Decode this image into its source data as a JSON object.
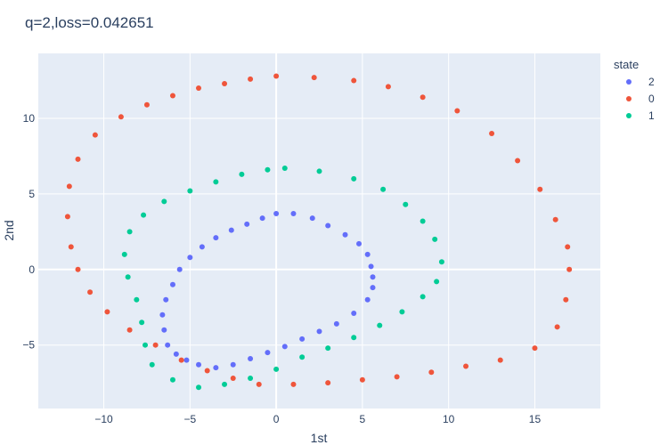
{
  "chart_data": {
    "type": "scatter",
    "title": "q=2,loss=0.042651",
    "xlabel": "1st",
    "ylabel": "2nd",
    "xlim": [
      -13.8,
      18.8
    ],
    "ylim": [
      -9.2,
      14.3
    ],
    "xticks": [
      -10,
      -5,
      0,
      5,
      10,
      15
    ],
    "yticks": [
      -5,
      0,
      5,
      10
    ],
    "xtick_labels": [
      "−10",
      "−5",
      "0",
      "5",
      "10",
      "15"
    ],
    "ytick_labels": [
      "−5",
      "0",
      "5",
      "10"
    ],
    "grid": true,
    "legend": {
      "title": "state",
      "position": "right"
    },
    "series": [
      {
        "name": "2",
        "color": "#636efa",
        "points": [
          [
            1.0,
            3.7
          ],
          [
            2.1,
            3.4
          ],
          [
            3.0,
            2.9
          ],
          [
            4.0,
            2.3
          ],
          [
            4.8,
            1.7
          ],
          [
            5.3,
            1.0
          ],
          [
            5.5,
            0.2
          ],
          [
            5.6,
            -0.5
          ],
          [
            5.6,
            -1.2
          ],
          [
            5.3,
            -2.0
          ],
          [
            4.5,
            -2.9
          ],
          [
            3.5,
            -3.6
          ],
          [
            2.5,
            -4.1
          ],
          [
            1.5,
            -4.6
          ],
          [
            0.5,
            -5.1
          ],
          [
            -0.5,
            -5.5
          ],
          [
            -1.5,
            -5.9
          ],
          [
            -2.5,
            -6.3
          ],
          [
            -3.5,
            -6.5
          ],
          [
            -4.5,
            -6.3
          ],
          [
            -5.2,
            -6.0
          ],
          [
            -5.8,
            -5.6
          ],
          [
            -6.3,
            -5.0
          ],
          [
            -6.5,
            -4.0
          ],
          [
            -6.6,
            -3.0
          ],
          [
            -6.4,
            -2.0
          ],
          [
            -6.0,
            -1.0
          ],
          [
            -5.6,
            0.0
          ],
          [
            -5.0,
            0.8
          ],
          [
            -4.3,
            1.5
          ],
          [
            -3.5,
            2.1
          ],
          [
            -2.6,
            2.6
          ],
          [
            -1.7,
            3.0
          ],
          [
            -0.8,
            3.4
          ],
          [
            0.0,
            3.7
          ]
        ]
      },
      {
        "name": "0",
        "color": "#ef553b",
        "points": [
          [
            0.0,
            12.8
          ],
          [
            2.2,
            12.7
          ],
          [
            4.5,
            12.5
          ],
          [
            6.5,
            12.1
          ],
          [
            8.5,
            11.4
          ],
          [
            10.5,
            10.5
          ],
          [
            12.5,
            9.0
          ],
          [
            14.0,
            7.2
          ],
          [
            15.3,
            5.3
          ],
          [
            16.2,
            3.3
          ],
          [
            16.9,
            1.5
          ],
          [
            17.0,
            0.0
          ],
          [
            16.8,
            -2.0
          ],
          [
            16.3,
            -3.8
          ],
          [
            15.0,
            -5.2
          ],
          [
            13.0,
            -6.0
          ],
          [
            11.0,
            -6.4
          ],
          [
            9.0,
            -6.8
          ],
          [
            7.0,
            -7.1
          ],
          [
            5.0,
            -7.3
          ],
          [
            3.0,
            -7.5
          ],
          [
            1.0,
            -7.6
          ],
          [
            -1.0,
            -7.6
          ],
          [
            -2.5,
            -7.2
          ],
          [
            -4.0,
            -6.7
          ],
          [
            -5.5,
            -6.0
          ],
          [
            -7.0,
            -5.0
          ],
          [
            -8.5,
            -4.0
          ],
          [
            -9.8,
            -2.8
          ],
          [
            -10.8,
            -1.5
          ],
          [
            -11.5,
            0.0
          ],
          [
            -11.9,
            1.5
          ],
          [
            -12.1,
            3.5
          ],
          [
            -12.0,
            5.5
          ],
          [
            -11.5,
            7.3
          ],
          [
            -10.5,
            8.9
          ],
          [
            -9.0,
            10.1
          ],
          [
            -7.5,
            10.9
          ],
          [
            -6.0,
            11.5
          ],
          [
            -4.5,
            12.0
          ],
          [
            -3.0,
            12.3
          ],
          [
            -1.5,
            12.6
          ]
        ]
      },
      {
        "name": "1",
        "color": "#00cc96",
        "points": [
          [
            0.5,
            6.7
          ],
          [
            2.5,
            6.5
          ],
          [
            4.5,
            6.0
          ],
          [
            6.2,
            5.3
          ],
          [
            7.5,
            4.3
          ],
          [
            8.5,
            3.2
          ],
          [
            9.2,
            2.0
          ],
          [
            9.6,
            0.5
          ],
          [
            9.3,
            -0.8
          ],
          [
            8.5,
            -1.8
          ],
          [
            7.3,
            -2.8
          ],
          [
            6.0,
            -3.7
          ],
          [
            4.5,
            -4.5
          ],
          [
            3.0,
            -5.2
          ],
          [
            1.5,
            -5.8
          ],
          [
            0.0,
            -6.6
          ],
          [
            -1.5,
            -7.2
          ],
          [
            -3.0,
            -7.6
          ],
          [
            -4.5,
            -7.8
          ],
          [
            -6.0,
            -7.3
          ],
          [
            -7.2,
            -6.3
          ],
          [
            -7.6,
            -5.0
          ],
          [
            -7.8,
            -3.5
          ],
          [
            -8.1,
            -2.0
          ],
          [
            -8.6,
            -0.5
          ],
          [
            -8.8,
            1.0
          ],
          [
            -8.5,
            2.5
          ],
          [
            -7.7,
            3.6
          ],
          [
            -6.5,
            4.5
          ],
          [
            -5.0,
            5.2
          ],
          [
            -3.5,
            5.8
          ],
          [
            -2.0,
            6.3
          ],
          [
            -0.5,
            6.6
          ]
        ]
      }
    ]
  }
}
